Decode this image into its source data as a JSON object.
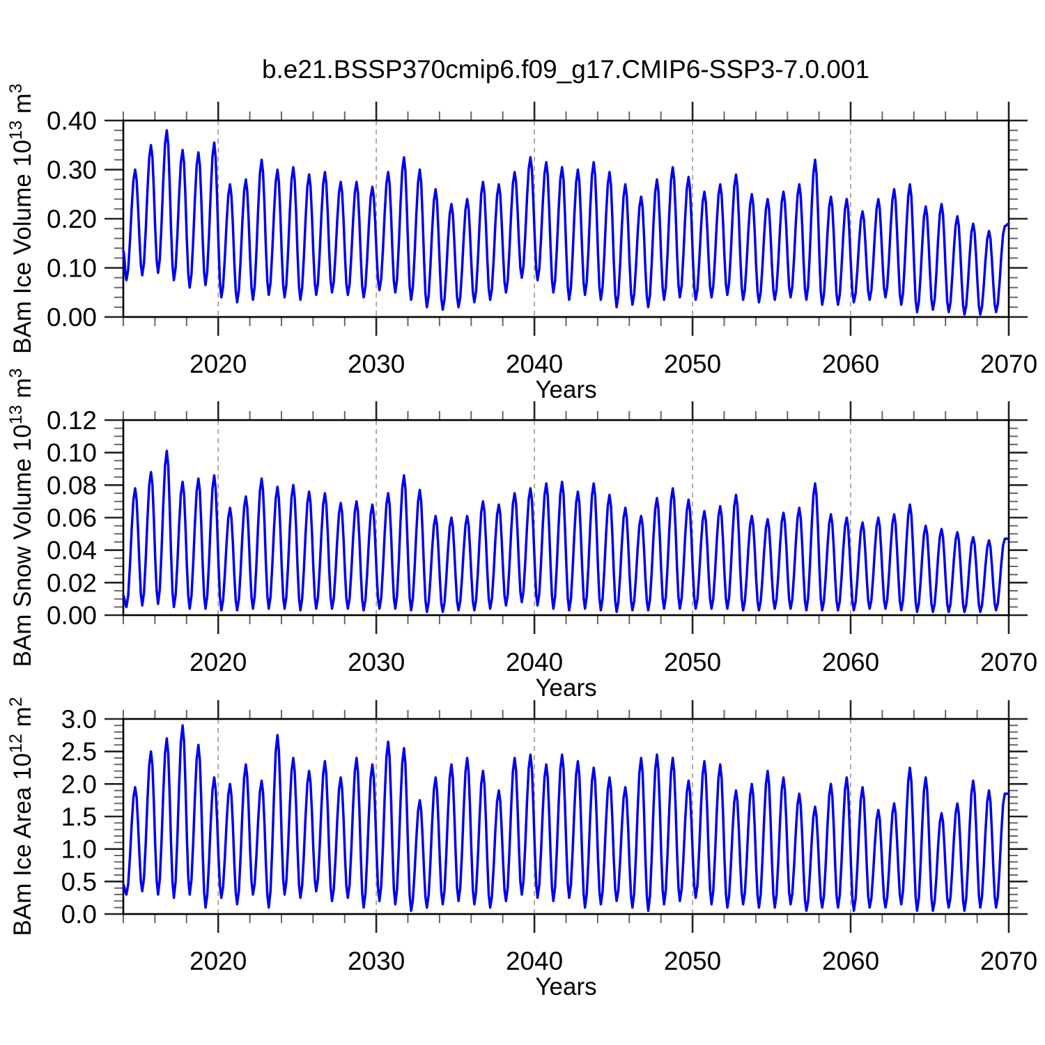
{
  "title": "b.e21.BSSP370cmip6.f09_g17.CMIP6-SSP3-7.0.001",
  "colors": {
    "line": "#0000ee",
    "frame": "#000000",
    "grid": "#999999",
    "major_tick": "#222222",
    "minor_tick": "#666666",
    "text": "#000000",
    "background": "#ffffff"
  },
  "x_axis": {
    "label": "Years",
    "range": [
      2014,
      2070
    ],
    "major_ticks": [
      2020,
      2030,
      2040,
      2050,
      2060,
      2070
    ],
    "major_tick_labels": [
      "2020",
      "2030",
      "2040",
      "2050",
      "2060",
      "2070"
    ],
    "minor_step_years": 2,
    "gridline_years": [
      2020,
      2030,
      2040,
      2050,
      2060
    ],
    "gridline_style": "dashed"
  },
  "chart_data": [
    {
      "type": "line",
      "name": "ice_volume",
      "ylabel_plain": "BAm Ice Volume 10^13 m^3",
      "ylabel_segments": [
        {
          "text": "BAm Ice Volume 10",
          "sup": false
        },
        {
          "text": "13",
          "sup": true
        },
        {
          "text": " m",
          "sup": false
        },
        {
          "text": "3",
          "sup": true
        }
      ],
      "xlabel": "Years",
      "ylim": [
        0,
        0.4
      ],
      "y_major_step": 0.1,
      "y_minor_step": 0.02,
      "y_tick_labels": [
        "0.00",
        "0.10",
        "0.20",
        "0.30",
        "0.40"
      ],
      "start_year": 2014,
      "seasonal_phases": {
        "trough": 0.2,
        "peak": 0.75
      },
      "annual_peaks": [
        0.3,
        0.35,
        0.38,
        0.34,
        0.335,
        0.355,
        0.27,
        0.28,
        0.32,
        0.3,
        0.305,
        0.29,
        0.295,
        0.275,
        0.275,
        0.265,
        0.295,
        0.325,
        0.3,
        0.26,
        0.23,
        0.24,
        0.275,
        0.27,
        0.295,
        0.325,
        0.315,
        0.305,
        0.3,
        0.315,
        0.295,
        0.27,
        0.245,
        0.28,
        0.305,
        0.285,
        0.255,
        0.27,
        0.29,
        0.25,
        0.24,
        0.255,
        0.27,
        0.32,
        0.245,
        0.24,
        0.215,
        0.24,
        0.26,
        0.27,
        0.225,
        0.23,
        0.205,
        0.19,
        0.175,
        0.185
      ],
      "annual_troughs": [
        0.075,
        0.085,
        0.09,
        0.075,
        0.06,
        0.065,
        0.04,
        0.03,
        0.035,
        0.045,
        0.04,
        0.035,
        0.045,
        0.05,
        0.045,
        0.04,
        0.055,
        0.05,
        0.035,
        0.02,
        0.015,
        0.02,
        0.03,
        0.035,
        0.05,
        0.08,
        0.075,
        0.05,
        0.035,
        0.045,
        0.035,
        0.02,
        0.025,
        0.02,
        0.035,
        0.04,
        0.035,
        0.04,
        0.045,
        0.035,
        0.03,
        0.035,
        0.04,
        0.035,
        0.025,
        0.025,
        0.03,
        0.035,
        0.04,
        0.025,
        0.01,
        0.015,
        0.01,
        0.005,
        0.005,
        0.01
      ],
      "start_value": 0.135,
      "end_value": 0.19
    },
    {
      "type": "line",
      "name": "snow_volume",
      "ylabel_plain": "BAm Snow Volume 10^13 m^3",
      "ylabel_segments": [
        {
          "text": "BAm Snow Volume 10",
          "sup": false
        },
        {
          "text": "13",
          "sup": true
        },
        {
          "text": " m",
          "sup": false
        },
        {
          "text": "3",
          "sup": true
        }
      ],
      "xlabel": "Years",
      "ylim": [
        0,
        0.12
      ],
      "y_major_step": 0.02,
      "y_minor_step": 0.005,
      "y_tick_labels": [
        "0.00",
        "0.02",
        "0.04",
        "0.06",
        "0.08",
        "0.10",
        "0.12"
      ],
      "start_year": 2014,
      "seasonal_phases": {
        "trough": 0.2,
        "peak": 0.75
      },
      "annual_peaks": [
        0.078,
        0.088,
        0.101,
        0.082,
        0.084,
        0.086,
        0.066,
        0.073,
        0.084,
        0.079,
        0.08,
        0.076,
        0.075,
        0.069,
        0.07,
        0.068,
        0.075,
        0.086,
        0.077,
        0.061,
        0.06,
        0.061,
        0.07,
        0.068,
        0.075,
        0.078,
        0.081,
        0.082,
        0.076,
        0.081,
        0.074,
        0.066,
        0.061,
        0.072,
        0.078,
        0.071,
        0.064,
        0.067,
        0.074,
        0.061,
        0.059,
        0.063,
        0.066,
        0.081,
        0.062,
        0.06,
        0.057,
        0.06,
        0.062,
        0.068,
        0.055,
        0.053,
        0.051,
        0.048,
        0.046,
        0.047
      ],
      "annual_troughs": [
        0.005,
        0.006,
        0.007,
        0.005,
        0.004,
        0.004,
        0.003,
        0.003,
        0.004,
        0.004,
        0.004,
        0.003,
        0.004,
        0.004,
        0.004,
        0.003,
        0.004,
        0.004,
        0.003,
        0.002,
        0.002,
        0.003,
        0.003,
        0.004,
        0.006,
        0.008,
        0.006,
        0.004,
        0.003,
        0.004,
        0.003,
        0.002,
        0.003,
        0.003,
        0.004,
        0.004,
        0.004,
        0.004,
        0.004,
        0.003,
        0.003,
        0.004,
        0.004,
        0.003,
        0.003,
        0.003,
        0.003,
        0.004,
        0.004,
        0.003,
        0.002,
        0.002,
        0.002,
        0.002,
        0.002,
        0.003
      ],
      "start_value": 0.012,
      "end_value": 0.047
    },
    {
      "type": "line",
      "name": "ice_area",
      "ylabel_plain": "BAm Ice Area 10^12 m^2",
      "ylabel_segments": [
        {
          "text": "BAm Ice Area 10",
          "sup": false
        },
        {
          "text": "12",
          "sup": true
        },
        {
          "text": " m",
          "sup": false
        },
        {
          "text": "2",
          "sup": true
        }
      ],
      "xlabel": "Years",
      "ylim": [
        0,
        3.0
      ],
      "y_major_step": 0.5,
      "y_minor_step": 0.1,
      "y_tick_labels": [
        "0.0",
        "0.5",
        "1.0",
        "1.5",
        "2.0",
        "2.5",
        "3.0"
      ],
      "start_year": 2014,
      "seasonal_phases": {
        "trough": 0.2,
        "peak": 0.75
      },
      "annual_peaks": [
        1.95,
        2.5,
        2.7,
        2.9,
        2.6,
        2.1,
        2.0,
        2.3,
        2.05,
        2.75,
        2.4,
        2.2,
        2.35,
        2.1,
        2.4,
        2.3,
        2.65,
        2.55,
        1.75,
        2.1,
        2.3,
        2.4,
        2.2,
        1.9,
        2.4,
        2.45,
        2.3,
        2.45,
        2.35,
        2.25,
        2.1,
        1.95,
        2.4,
        2.45,
        2.4,
        2.05,
        2.35,
        2.3,
        1.9,
        2.0,
        2.2,
        2.1,
        1.85,
        1.65,
        2.0,
        2.1,
        1.95,
        1.6,
        1.7,
        2.25,
        2.1,
        1.55,
        1.7,
        2.05,
        1.9,
        1.85
      ],
      "annual_troughs": [
        0.3,
        0.35,
        0.3,
        0.25,
        0.3,
        0.1,
        0.25,
        0.15,
        0.3,
        0.1,
        0.3,
        0.25,
        0.35,
        0.2,
        0.25,
        0.1,
        0.2,
        0.15,
        0.05,
        0.1,
        0.15,
        0.2,
        0.15,
        0.1,
        0.2,
        0.3,
        0.25,
        0.2,
        0.25,
        0.1,
        0.15,
        0.2,
        0.1,
        0.05,
        0.15,
        0.2,
        0.25,
        0.15,
        0.1,
        0.15,
        0.1,
        0.1,
        0.15,
        0.05,
        0.1,
        0.1,
        0.05,
        0.1,
        0.1,
        0.15,
        0.05,
        0.05,
        0.1,
        0.05,
        0.1,
        0.1
      ],
      "start_value": 0.45,
      "end_value": 1.85
    }
  ]
}
